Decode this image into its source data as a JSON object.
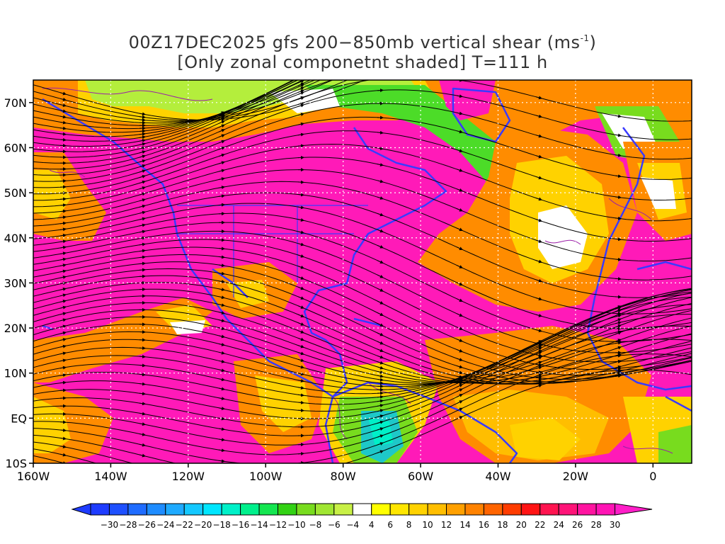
{
  "title": {
    "line1_main": "00Z17DEC2025 gfs 200−850mb vertical shear (ms",
    "line1_sup": "-1",
    "line1_end": ")",
    "line2": "[Only zonal componetnt shaded] T=111 h"
  },
  "map": {
    "lon_range": [
      -160,
      10
    ],
    "lat_range": [
      -10,
      75
    ],
    "lon_ticks": [
      {
        "value": -160,
        "label": "160W"
      },
      {
        "value": -140,
        "label": "140W"
      },
      {
        "value": -120,
        "label": "120W"
      },
      {
        "value": -100,
        "label": "100W"
      },
      {
        "value": -80,
        "label": "80W"
      },
      {
        "value": -60,
        "label": "60W"
      },
      {
        "value": -40,
        "label": "40W"
      },
      {
        "value": -20,
        "label": "20W"
      },
      {
        "value": 0,
        "label": "0"
      }
    ],
    "lat_ticks": [
      {
        "value": -10,
        "label": "10S"
      },
      {
        "value": 0,
        "label": "EQ"
      },
      {
        "value": 10,
        "label": "10N"
      },
      {
        "value": 20,
        "label": "20N"
      },
      {
        "value": 30,
        "label": "30N"
      },
      {
        "value": 40,
        "label": "40N"
      },
      {
        "value": 50,
        "label": "50N"
      },
      {
        "value": 60,
        "label": "60N"
      },
      {
        "value": 70,
        "label": "70N"
      }
    ],
    "grid_lons": [
      -140,
      -120,
      -100,
      -80,
      -60,
      -40,
      -20,
      0
    ],
    "grid_lats": [
      0,
      10,
      20,
      30,
      40,
      50,
      60,
      70
    ],
    "coastline_color": "#3a3aff",
    "contour_color": "#9b1fa8",
    "streamline_color": "#000000"
  },
  "colorbar": {
    "labels": [
      "-30",
      "-28",
      "-26",
      "-24",
      "-22",
      "-20",
      "-18",
      "-16",
      "-14",
      "-12",
      "-10",
      "-8",
      "-6",
      "-4",
      "4",
      "6",
      "8",
      "10",
      "12",
      "14",
      "16",
      "18",
      "20",
      "22",
      "24",
      "26",
      "28",
      "30"
    ],
    "colors": [
      "#1e3cff",
      "#1e50ff",
      "#1f6cff",
      "#1e8cff",
      "#1eaaff",
      "#14c8ff",
      "#00e6ff",
      "#00f0c8",
      "#00f08c",
      "#14e650",
      "#32d214",
      "#78dc1e",
      "#a0e632",
      "#c8f046",
      "#ffffff",
      "#ffff00",
      "#ffe600",
      "#ffd200",
      "#ffbe00",
      "#ffa000",
      "#ff8200",
      "#ff6400",
      "#ff3c00",
      "#ff1414",
      "#ff1450",
      "#ff1478",
      "#ff14a0",
      "#ff14b4",
      "#ff1ec8"
    ]
  }
}
